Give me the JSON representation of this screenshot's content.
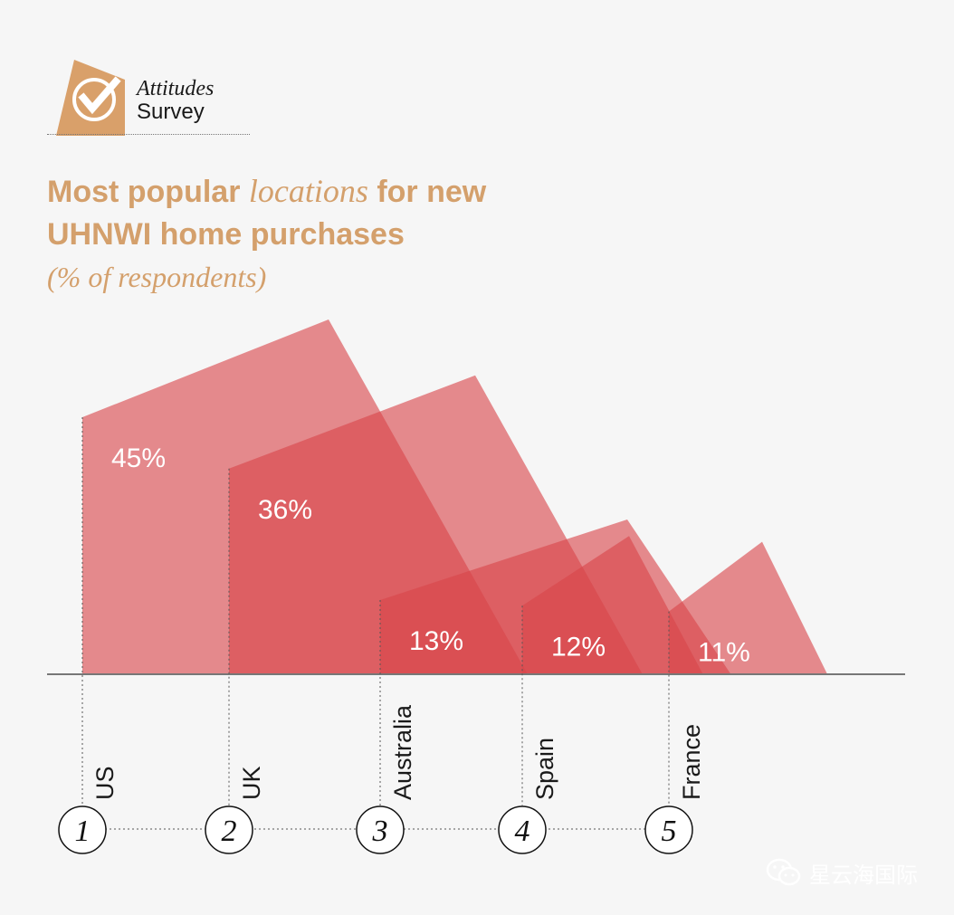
{
  "header": {
    "logo_line1": "Attitudes",
    "logo_line2": "Survey",
    "title_part1": "Most popular ",
    "title_italic": "locations",
    "title_part2": " for new",
    "title_line2": "UHNWI home purchases",
    "subtitle": "(% of respondents)"
  },
  "colors": {
    "title": "#d4a06c",
    "logo": "#d9a06a",
    "shape_fill": "#d9464b",
    "label": "#ffffff",
    "axis": "#777777"
  },
  "chart_data": {
    "type": "area",
    "unit": "%",
    "ylim": [
      0,
      50
    ],
    "legend": "none",
    "grid": false,
    "categories": [
      "US",
      "UK",
      "Australia",
      "Spain",
      "France"
    ],
    "ranks": [
      "1",
      "2",
      "3",
      "4",
      "5"
    ],
    "values": [
      45,
      36,
      13,
      12,
      11
    ],
    "value_labels": [
      "45%",
      "36%",
      "13%",
      "12%",
      "11%"
    ]
  },
  "watermark": {
    "text": "星云海国际",
    "icon": "wechat-icon"
  }
}
